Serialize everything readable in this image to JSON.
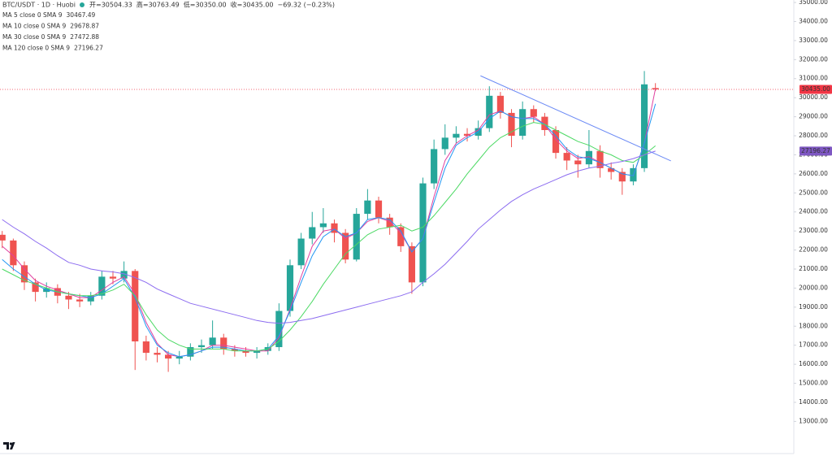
{
  "chart_data": {
    "type": "candlestick",
    "title": "BTC/USDT · 1D · Huobi",
    "ohlc_legend": [
      "开=30504.33",
      "高=30763.49",
      "低=30350.00",
      "收=30435.00",
      "−69.32 (−0.23%)"
    ],
    "up_color": "#26a69a",
    "down_color": "#ef5350",
    "open": [
      22800,
      22500,
      21200,
      20300,
      19800,
      20000,
      19600,
      19400,
      19300,
      19600,
      20600,
      20500,
      20900,
      17200,
      16600,
      16500,
      16300,
      16400,
      16900,
      17000,
      17400,
      16800,
      16700,
      16600,
      16700,
      16900,
      18800,
      21200,
      22600,
      23200,
      23400,
      22900,
      21500,
      23900,
      24600,
      23700,
      23200,
      22200,
      20300,
      25500,
      27300,
      27900,
      28100,
      28000,
      28400,
      30100,
      29200,
      28000,
      29400,
      29000,
      28300,
      27100,
      26700,
      26500,
      27200,
      26300,
      26100,
      25600,
      26300,
      30504.33
    ],
    "high": [
      23000,
      22600,
      21400,
      20500,
      20300,
      20200,
      19800,
      19700,
      19800,
      20900,
      20900,
      21400,
      21000,
      17500,
      16900,
      16700,
      16700,
      17100,
      17300,
      18300,
      17600,
      17000,
      16900,
      16900,
      17100,
      19200,
      21500,
      22900,
      24000,
      24200,
      23600,
      23100,
      24200,
      25200,
      24800,
      23900,
      23400,
      22400,
      25800,
      27800,
      28600,
      28500,
      28400,
      28800,
      30600,
      30300,
      29400,
      29800,
      29600,
      29200,
      28500,
      27400,
      27000,
      28300,
      27500,
      26600,
      26300,
      26500,
      31400,
      30763.49
    ],
    "low": [
      22100,
      20900,
      19900,
      19300,
      19500,
      19200,
      18900,
      19000,
      19100,
      19400,
      20200,
      20300,
      15700,
      16200,
      16100,
      15600,
      16000,
      16200,
      16600,
      16800,
      16500,
      16400,
      16400,
      16300,
      16500,
      16700,
      18500,
      21000,
      22300,
      22900,
      22400,
      21300,
      21400,
      23600,
      23400,
      22800,
      21900,
      19700,
      20100,
      25200,
      27000,
      27600,
      27700,
      27800,
      28200,
      28900,
      27400,
      27800,
      28700,
      28000,
      26800,
      26200,
      25800,
      26300,
      25800,
      25700,
      24900,
      25400,
      26100,
      30350
    ],
    "close": [
      22500,
      21200,
      20300,
      19800,
      20000,
      19600,
      19400,
      19300,
      19600,
      20600,
      20500,
      20900,
      17200,
      16600,
      16500,
      16300,
      16400,
      16900,
      17000,
      17400,
      16800,
      16700,
      16600,
      16700,
      16900,
      18800,
      21200,
      22600,
      23200,
      23400,
      22900,
      21500,
      23900,
      24600,
      23700,
      23200,
      22200,
      20300,
      25500,
      27300,
      27900,
      28100,
      28000,
      28400,
      30100,
      29200,
      28000,
      29400,
      29000,
      28300,
      27100,
      26700,
      26500,
      27200,
      26300,
      26100,
      25600,
      26300,
      30700,
      30435
    ],
    "series": [
      {
        "name": "MA 5 close 0 SMA 9",
        "legend_value": "30467.49",
        "color": "#e040a0",
        "values": [
          22200,
          21700,
          21000,
          20400,
          20100,
          19900,
          19700,
          19500,
          19500,
          19900,
          20300,
          20600,
          19700,
          18200,
          17100,
          16500,
          16400,
          16500,
          16700,
          17000,
          17000,
          16900,
          16800,
          16700,
          16700,
          17400,
          18900,
          20600,
          22200,
          23000,
          23100,
          22600,
          22900,
          23500,
          23700,
          23500,
          22900,
          21900,
          22600,
          24800,
          26700,
          27600,
          28000,
          28300,
          29100,
          29300,
          29000,
          28900,
          29000,
          28600,
          27800,
          27200,
          26800,
          26900,
          26600,
          26300,
          26000,
          25900,
          27600,
          30467.49
        ]
      },
      {
        "name": "MA 10 close 0 SMA 9",
        "legend_value": "29678.87",
        "color": "#2196f3",
        "values": [
          21500,
          21000,
          20600,
          20200,
          19900,
          19800,
          19700,
          19600,
          19500,
          19700,
          20100,
          20500,
          19500,
          18000,
          17000,
          16600,
          16400,
          16500,
          16700,
          16900,
          16900,
          16800,
          16700,
          16700,
          16800,
          17500,
          18800,
          20300,
          21700,
          22700,
          23100,
          22700,
          22900,
          23600,
          23700,
          23600,
          23000,
          21900,
          22600,
          24500,
          26300,
          27500,
          27900,
          28200,
          28900,
          29300,
          29000,
          28900,
          28900,
          28600,
          28000,
          27300,
          26900,
          26800,
          26600,
          26300,
          26000,
          25900,
          27600,
          29678.87
        ]
      },
      {
        "name": "MA 30 close 0 SMA 9",
        "legend_value": "27472.88",
        "color": "#4cd964",
        "values": [
          21000,
          20700,
          20400,
          20200,
          20000,
          19800,
          19700,
          19600,
          19600,
          19700,
          19900,
          20200,
          19600,
          18600,
          17800,
          17300,
          17000,
          16800,
          16800,
          16800,
          16800,
          16700,
          16700,
          16700,
          16800,
          17200,
          17800,
          18500,
          19300,
          20200,
          21000,
          21800,
          22300,
          22800,
          23100,
          23200,
          23300,
          23000,
          23200,
          23800,
          24500,
          25200,
          26000,
          26700,
          27400,
          27900,
          28200,
          28500,
          28700,
          28600,
          28300,
          28000,
          27700,
          27500,
          27200,
          27000,
          26700,
          26600,
          27000,
          27472.88
        ]
      },
      {
        "name": "MA 120 close 0 SMA 9",
        "legend_value": "27196.27",
        "color": "#8c6cf0",
        "values": [
          23600,
          23200,
          22850,
          22450,
          22100,
          21700,
          21350,
          21200,
          21000,
          20900,
          20850,
          20750,
          20550,
          20300,
          19950,
          19700,
          19450,
          19200,
          19050,
          18900,
          18750,
          18600,
          18450,
          18300,
          18200,
          18150,
          18200,
          18300,
          18400,
          18550,
          18700,
          18850,
          19000,
          19150,
          19300,
          19450,
          19600,
          19800,
          20300,
          20750,
          21250,
          21850,
          22450,
          23100,
          23600,
          24100,
          24550,
          24900,
          25200,
          25450,
          25700,
          25950,
          26150,
          26300,
          26400,
          26550,
          26650,
          26800,
          27000,
          27196.27
        ]
      }
    ],
    "trendline": {
      "x": [
        43.2,
        60.4
      ],
      "y": [
        31150,
        26680
      ],
      "color": "#6b8af5"
    },
    "price_tags": [
      {
        "value": 30435,
        "label": "30435.00",
        "color": "#f23645"
      },
      {
        "value": 27196.27,
        "label": "27196.27",
        "color": "#7e57c2"
      }
    ],
    "xlim": [
      -0.2,
      71.5
    ],
    "ylim": [
      11310,
      35130
    ],
    "yticks": [
      {
        "value": 13000,
        "label": "13000.00"
      },
      {
        "value": 14000,
        "label": "14000.00"
      },
      {
        "value": 15000,
        "label": "15000.00"
      },
      {
        "value": 16000,
        "label": "16000.00"
      },
      {
        "value": 17000,
        "label": "17000.00"
      },
      {
        "value": 18000,
        "label": "18000.00"
      },
      {
        "value": 19000,
        "label": "19000.00"
      },
      {
        "value": 20000,
        "label": "20000.00"
      },
      {
        "value": 21000,
        "label": "21000.00"
      },
      {
        "value": 22000,
        "label": "22000.00"
      },
      {
        "value": 23000,
        "label": "23000.00"
      },
      {
        "value": 24000,
        "label": "24000.00"
      },
      {
        "value": 25000,
        "label": "25000.00"
      },
      {
        "value": 26000,
        "label": "26000.00"
      },
      {
        "value": 27000,
        "label": "27000.00"
      },
      {
        "value": 28000,
        "label": "28000.00"
      },
      {
        "value": 29000,
        "label": "29000.00"
      },
      {
        "value": 30000,
        "label": "30000.00"
      },
      {
        "value": 31000,
        "label": "31000.00"
      },
      {
        "value": 32000,
        "label": "32000.00"
      },
      {
        "value": 33000,
        "label": "33000.00"
      },
      {
        "value": 34000,
        "label": "34000.00"
      },
      {
        "value": 35000,
        "label": "35000.00"
      }
    ],
    "grid": false
  }
}
